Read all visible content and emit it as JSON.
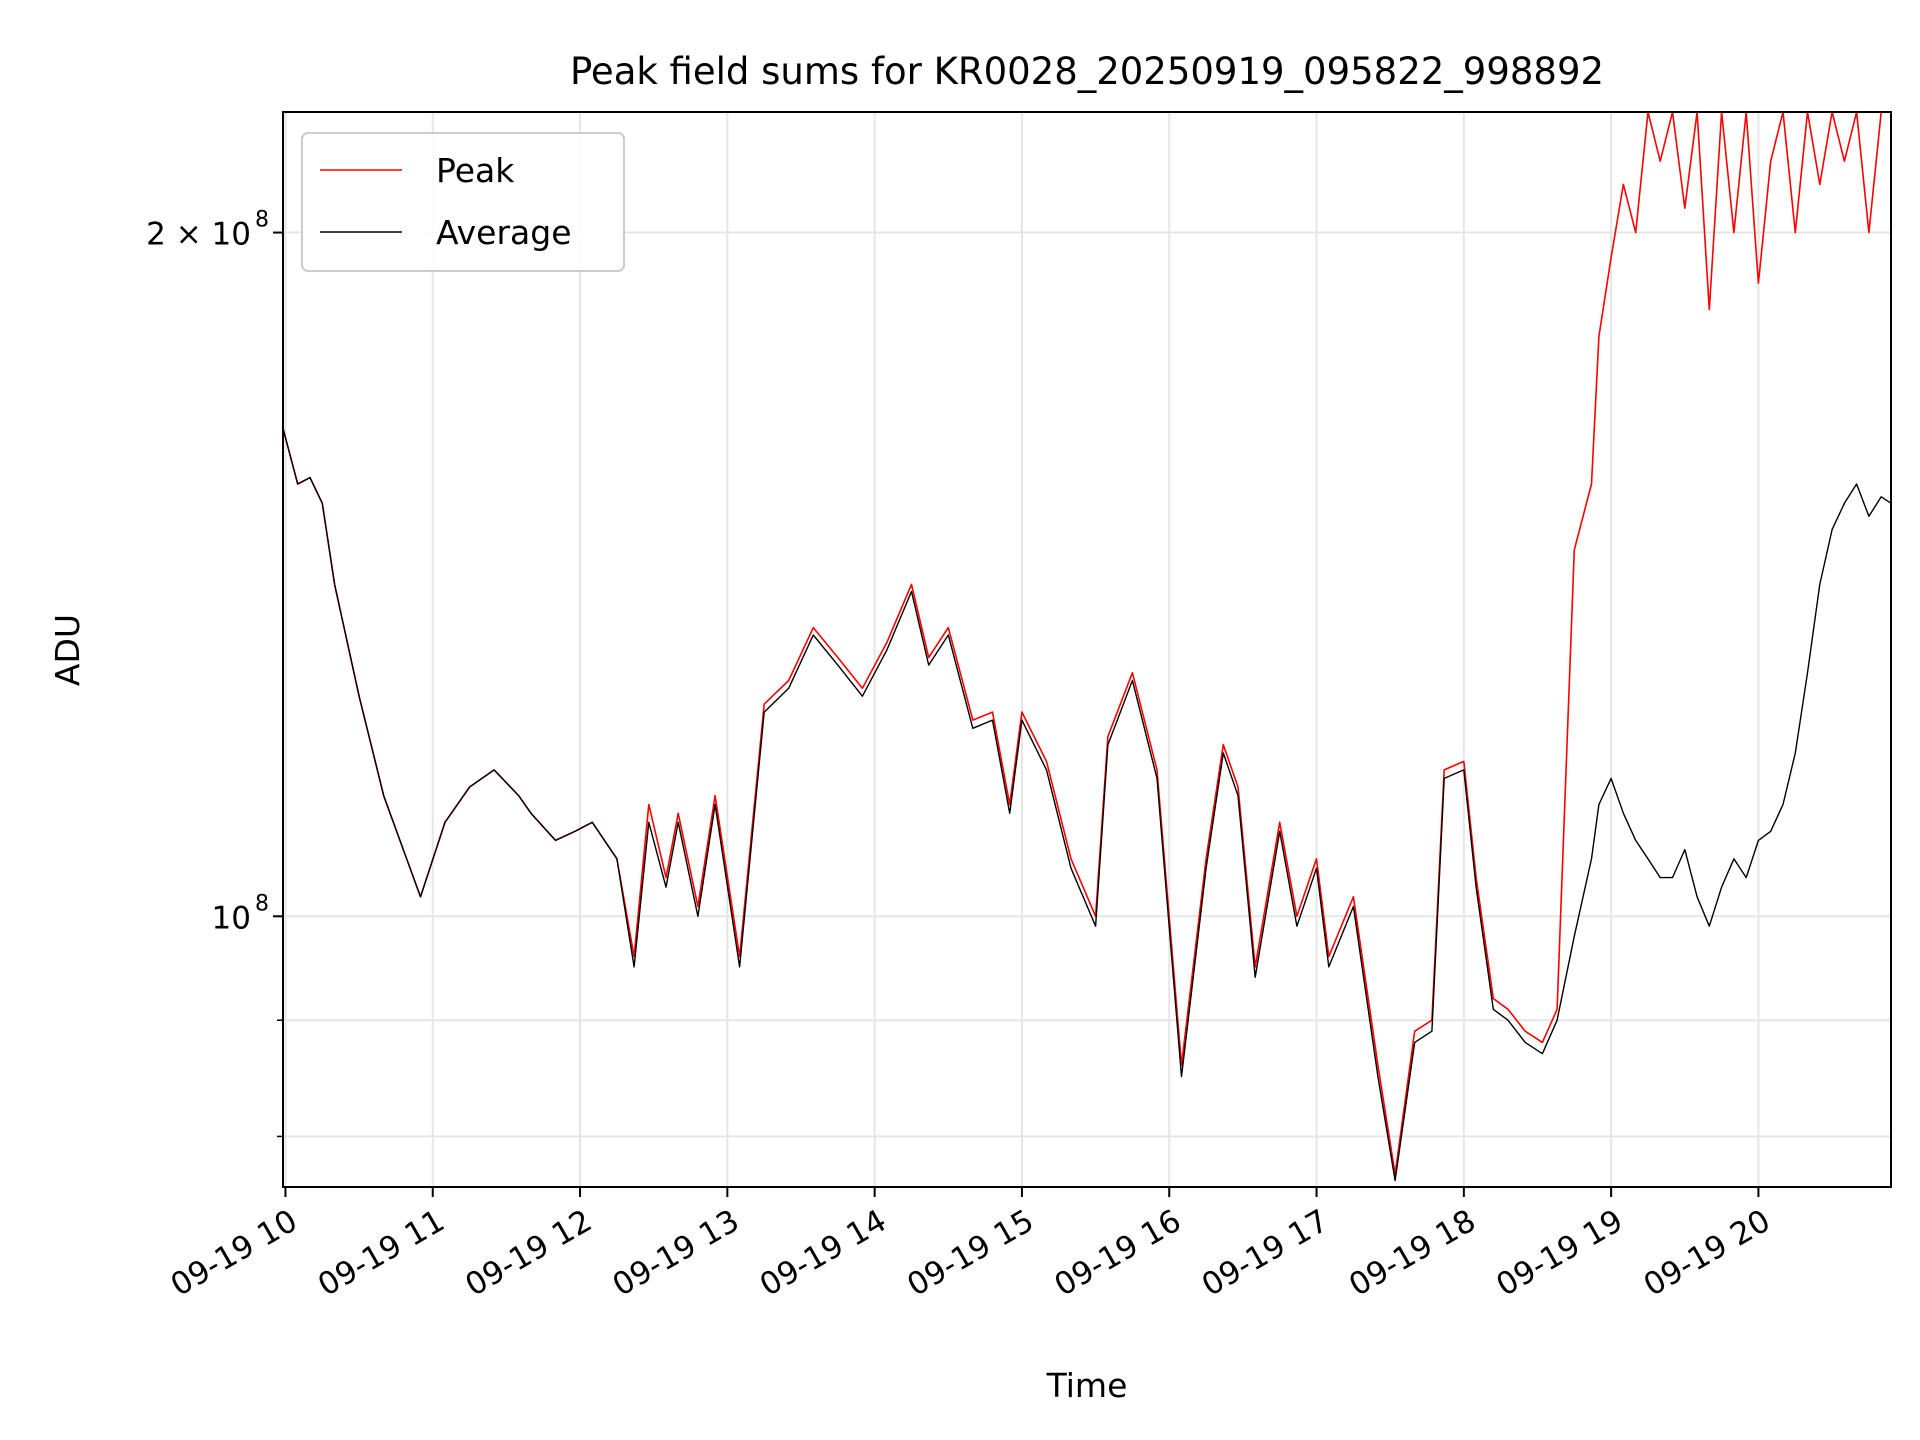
{
  "chart_data": {
    "type": "line",
    "title": "Peak field sums for KR0028_20250919_095822_998892",
    "xlabel": "Time",
    "ylabel": "ADU",
    "y_scale": "log",
    "ylim": [
      76000000,
      226000000
    ],
    "xlim": [
      "09-19 09:59",
      "09-19 20:54"
    ],
    "x_ticks": [
      "09-19 10",
      "09-19 11",
      "09-19 12",
      "09-19 13",
      "09-19 14",
      "09-19 15",
      "09-19 16",
      "09-19 17",
      "09-19 18",
      "09-19 19",
      "09-19 20"
    ],
    "y_ticks": [
      {
        "value": 100000000,
        "label": "10",
        "exp": "8"
      },
      {
        "value": 200000000,
        "label": "2 × 10",
        "exp": "8"
      }
    ],
    "grid": true,
    "legend": "top-left",
    "series": [
      {
        "name": "Peak",
        "color": "#ff0000",
        "x": [
          "09-19 09:59",
          "09-19 10:05",
          "09-19 10:10",
          "09-19 10:15",
          "09-19 10:20",
          "09-19 10:30",
          "09-19 10:40",
          "09-19 10:48",
          "09-19 10:55",
          "09-19 11:05",
          "09-19 11:15",
          "09-19 11:25",
          "09-19 11:35",
          "09-19 11:40",
          "09-19 11:50",
          "09-19 11:58",
          "09-19 12:05",
          "09-19 12:15",
          "09-19 12:22",
          "09-19 12:28",
          "09-19 12:35",
          "09-19 12:40",
          "09-19 12:48",
          "09-19 12:55",
          "09-19 13:05",
          "09-19 13:15",
          "09-19 13:25",
          "09-19 13:35",
          "09-19 13:45",
          "09-19 13:55",
          "09-19 14:05",
          "09-19 14:15",
          "09-19 14:22",
          "09-19 14:30",
          "09-19 14:40",
          "09-19 14:48",
          "09-19 14:55",
          "09-19 15:00",
          "09-19 15:10",
          "09-19 15:20",
          "09-19 15:30",
          "09-19 15:35",
          "09-19 15:45",
          "09-19 15:55",
          "09-19 16:05",
          "09-19 16:15",
          "09-19 16:22",
          "09-19 16:28",
          "09-19 16:35",
          "09-19 16:45",
          "09-19 16:52",
          "09-19 17:00",
          "09-19 17:05",
          "09-19 17:15",
          "09-19 17:25",
          "09-19 17:32",
          "09-19 17:40",
          "09-19 17:47",
          "09-19 17:52",
          "09-19 18:00",
          "09-19 18:05",
          "09-19 18:12",
          "09-19 18:18",
          "09-19 18:25",
          "09-19 18:32",
          "09-19 18:38",
          "09-19 18:45",
          "09-19 18:52",
          "09-19 18:55",
          "09-19 19:00",
          "09-19 19:05",
          "09-19 19:10",
          "09-19 19:15",
          "09-19 19:20",
          "09-19 19:25",
          "09-19 19:30",
          "09-19 19:35",
          "09-19 19:40",
          "09-19 19:45",
          "09-19 19:50",
          "09-19 19:55",
          "09-19 20:00",
          "09-19 20:05",
          "09-19 20:10",
          "09-19 20:15",
          "09-19 20:20",
          "09-19 20:25",
          "09-19 20:30",
          "09-19 20:35",
          "09-19 20:40",
          "09-19 20:45",
          "09-19 20:50",
          "09-19 20:54"
        ],
        "values": [
          164000000,
          155000000,
          156000000,
          152000000,
          140000000,
          125000000,
          113000000,
          107000000,
          102000000,
          110000000,
          114000000,
          116000000,
          113000000,
          111000000,
          108000000,
          109000000,
          110000000,
          106000000,
          96000000,
          112000000,
          104000000,
          111000000,
          101000000,
          113000000,
          96000000,
          124000000,
          127000000,
          134000000,
          130000000,
          126000000,
          132000000,
          140000000,
          130000000,
          134000000,
          122000000,
          123000000,
          112000000,
          123000000,
          117000000,
          106000000,
          100000000,
          120000000,
          128000000,
          116000000,
          86000000,
          106000000,
          119000000,
          114000000,
          95000000,
          110000000,
          100000000,
          106000000,
          96000000,
          102000000,
          86000000,
          77000000,
          89000000,
          90000000,
          116000000,
          117000000,
          104000000,
          92000000,
          91000000,
          89000000,
          88000000,
          91000000,
          145000000,
          155000000,
          180000000,
          195000000,
          210000000,
          200000000,
          226000000,
          215000000,
          226000000,
          205000000,
          226000000,
          185000000,
          226000000,
          200000000,
          226000000,
          190000000,
          215000000,
          226000000,
          200000000,
          226000000,
          210000000,
          226000000,
          215000000,
          226000000,
          200000000,
          226000000,
          226000000
        ]
      },
      {
        "name": "Average",
        "color": "#000000",
        "x": [
          "09-19 09:59",
          "09-19 10:05",
          "09-19 10:10",
          "09-19 10:15",
          "09-19 10:20",
          "09-19 10:30",
          "09-19 10:40",
          "09-19 10:48",
          "09-19 10:55",
          "09-19 11:05",
          "09-19 11:15",
          "09-19 11:25",
          "09-19 11:35",
          "09-19 11:40",
          "09-19 11:50",
          "09-19 11:58",
          "09-19 12:05",
          "09-19 12:15",
          "09-19 12:22",
          "09-19 12:28",
          "09-19 12:35",
          "09-19 12:40",
          "09-19 12:48",
          "09-19 12:55",
          "09-19 13:05",
          "09-19 13:15",
          "09-19 13:25",
          "09-19 13:35",
          "09-19 13:45",
          "09-19 13:55",
          "09-19 14:05",
          "09-19 14:15",
          "09-19 14:22",
          "09-19 14:30",
          "09-19 14:40",
          "09-19 14:48",
          "09-19 14:55",
          "09-19 15:00",
          "09-19 15:10",
          "09-19 15:20",
          "09-19 15:30",
          "09-19 15:35",
          "09-19 15:45",
          "09-19 15:55",
          "09-19 16:05",
          "09-19 16:15",
          "09-19 16:22",
          "09-19 16:28",
          "09-19 16:35",
          "09-19 16:45",
          "09-19 16:52",
          "09-19 17:00",
          "09-19 17:05",
          "09-19 17:15",
          "09-19 17:25",
          "09-19 17:32",
          "09-19 17:40",
          "09-19 17:47",
          "09-19 17:52",
          "09-19 18:00",
          "09-19 18:05",
          "09-19 18:12",
          "09-19 18:18",
          "09-19 18:25",
          "09-19 18:32",
          "09-19 18:38",
          "09-19 18:45",
          "09-19 18:52",
          "09-19 18:55",
          "09-19 19:00",
          "09-19 19:05",
          "09-19 19:10",
          "09-19 19:15",
          "09-19 19:20",
          "09-19 19:25",
          "09-19 19:30",
          "09-19 19:35",
          "09-19 19:40",
          "09-19 19:45",
          "09-19 19:50",
          "09-19 19:55",
          "09-19 20:00",
          "09-19 20:05",
          "09-19 20:10",
          "09-19 20:15",
          "09-19 20:20",
          "09-19 20:25",
          "09-19 20:30",
          "09-19 20:35",
          "09-19 20:40",
          "09-19 20:45",
          "09-19 20:50",
          "09-19 20:54"
        ],
        "values": [
          164000000,
          155000000,
          156000000,
          152000000,
          140000000,
          125000000,
          113000000,
          107000000,
          102000000,
          110000000,
          114000000,
          116000000,
          113000000,
          111000000,
          108000000,
          109000000,
          110000000,
          106000000,
          95000000,
          110000000,
          103000000,
          110000000,
          100000000,
          112000000,
          95000000,
          123000000,
          126000000,
          133000000,
          129000000,
          125000000,
          131000000,
          139000000,
          129000000,
          133000000,
          121000000,
          122000000,
          111000000,
          122000000,
          116000000,
          105000000,
          99000000,
          119000000,
          127000000,
          115000000,
          85000000,
          105000000,
          118000000,
          113000000,
          94000000,
          109000000,
          99000000,
          105000000,
          95000000,
          101000000,
          85000000,
          76500000,
          88000000,
          89000000,
          115000000,
          116000000,
          103000000,
          91000000,
          90000000,
          88000000,
          87000000,
          90000000,
          98000000,
          106000000,
          112000000,
          115000000,
          111000000,
          108000000,
          106000000,
          104000000,
          104000000,
          107000000,
          102000000,
          99000000,
          103000000,
          106000000,
          104000000,
          108000000,
          109000000,
          112000000,
          118000000,
          128000000,
          140000000,
          148000000,
          152000000,
          155000000,
          150000000,
          153000000,
          152000000
        ]
      }
    ]
  }
}
